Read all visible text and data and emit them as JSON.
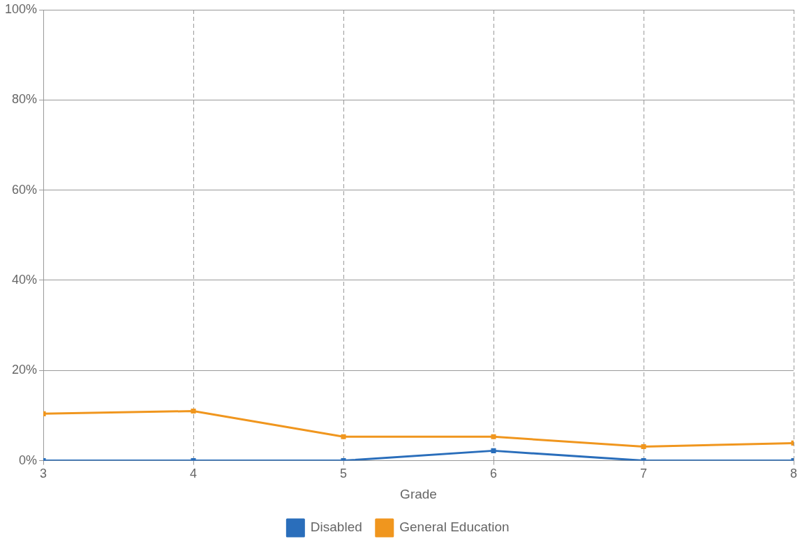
{
  "chart_data": {
    "type": "line",
    "xlabel": "Grade",
    "x": [
      3,
      4,
      5,
      6,
      7,
      8
    ],
    "xlim": [
      3,
      8
    ],
    "xticks": [
      3,
      4,
      5,
      6,
      7,
      8
    ],
    "ylim": [
      0,
      100
    ],
    "yticks": [
      {
        "value": 0,
        "label": "0%"
      },
      {
        "value": 20,
        "label": "20%"
      },
      {
        "value": 40,
        "label": "40%"
      },
      {
        "value": 60,
        "label": "60%"
      },
      {
        "value": 80,
        "label": "80%"
      },
      {
        "value": 100,
        "label": "100%"
      }
    ],
    "series": [
      {
        "name": "Disabled",
        "color": "#2a6ebb",
        "values": [
          0,
          0,
          0,
          2.2,
          0,
          0
        ]
      },
      {
        "name": "General Education",
        "color": "#f0961e",
        "values": [
          10.4,
          11.0,
          5.3,
          5.3,
          3.1,
          3.9
        ]
      }
    ],
    "grid": true,
    "legend": "bottom",
    "marker": "square",
    "line_style": "solid"
  }
}
